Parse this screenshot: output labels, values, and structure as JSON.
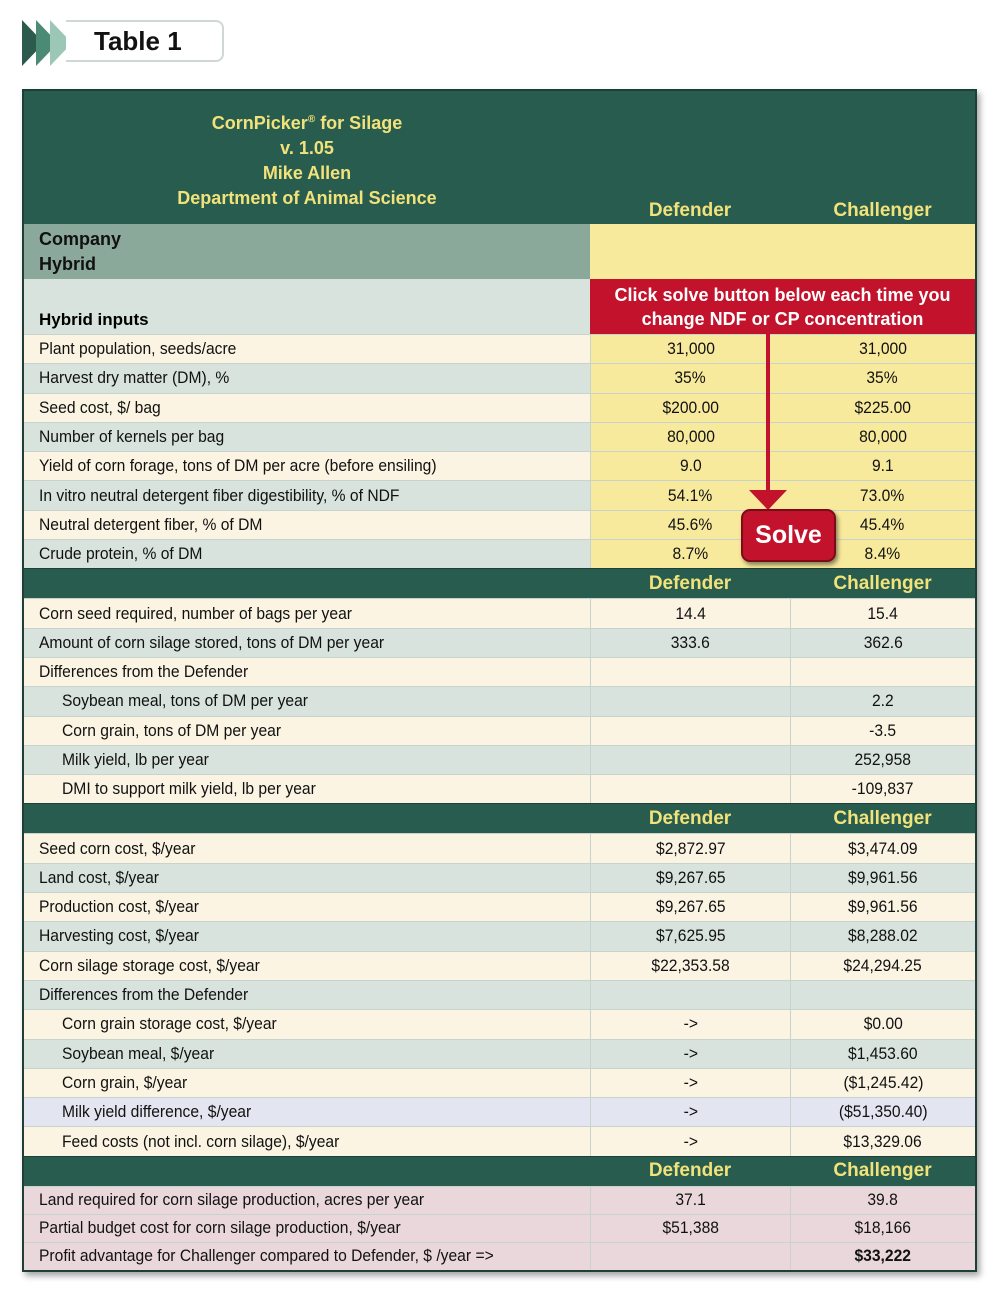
{
  "label": "Table 1",
  "banner": {
    "title": "CornPicker",
    "reg": "®",
    "title_suffix": " for Silage",
    "version": "v. 1.05",
    "author": "Mike Allen",
    "department": "Department of Animal Science"
  },
  "columns": {
    "defender": "Defender",
    "challenger": "Challenger"
  },
  "company_label": "Company",
  "hybrid_label": "Hybrid",
  "hybrid_inputs_label": "Hybrid inputs",
  "notice": {
    "line1": "Click solve button below each time you",
    "line2": "change NDF or CP concentration"
  },
  "solve_label": "Solve",
  "inputs": [
    {
      "label": "Plant population, seeds/acre",
      "defender": "31,000",
      "challenger": "31,000"
    },
    {
      "label": "Harvest dry matter (DM), %",
      "defender": "35%",
      "challenger": "35%"
    },
    {
      "label": "Seed cost,  $/ bag",
      "defender": "$200.00",
      "challenger": "$225.00"
    },
    {
      "label": "Number of kernels per bag",
      "defender": "80,000",
      "challenger": "80,000"
    },
    {
      "label": "Yield of corn forage, tons of DM per acre (before ensiling)",
      "defender": "9.0",
      "challenger": "9.1"
    },
    {
      "label": "In vitro neutral detergent fiber digestibility, % of NDF",
      "defender": "54.1%",
      "challenger": "73.0%"
    },
    {
      "label": "Neutral detergent fiber, % of DM",
      "defender": "45.6%",
      "challenger": "45.4%"
    },
    {
      "label": "Crude protein, % of DM",
      "defender": "8.7%",
      "challenger": "8.4%"
    }
  ],
  "section2": [
    {
      "label": "Corn seed required, number of bags per year",
      "defender": "14.4",
      "challenger": "15.4",
      "indent": false
    },
    {
      "label": "Amount of corn silage stored, tons of DM per year",
      "defender": "333.6",
      "challenger": "362.6",
      "indent": false
    },
    {
      "label": "Differences from the Defender",
      "defender": "",
      "challenger": "",
      "indent": false
    },
    {
      "label": "Soybean meal, tons of DM per year",
      "defender": "",
      "challenger": "2.2",
      "indent": true
    },
    {
      "label": "Corn grain, tons of DM per year",
      "defender": "",
      "challenger": "-3.5",
      "indent": true
    },
    {
      "label": "Milk yield, lb per year",
      "defender": "",
      "challenger": "252,958",
      "indent": true
    },
    {
      "label": "DMI to support milk yield, lb per year",
      "defender": "",
      "challenger": "-109,837",
      "indent": true
    }
  ],
  "section3": [
    {
      "label": "Seed corn cost, $/year",
      "defender": "$2,872.97",
      "challenger": "$3,474.09",
      "indent": false
    },
    {
      "label": "Land cost, $/year",
      "defender": "$9,267.65",
      "challenger": "$9,961.56",
      "indent": false
    },
    {
      "label": "Production cost, $/year",
      "defender": "$9,267.65",
      "challenger": "$9,961.56",
      "indent": false
    },
    {
      "label": "Harvesting cost, $/year",
      "defender": "$7,625.95",
      "challenger": "$8,288.02",
      "indent": false
    },
    {
      "label": "Corn silage storage cost, $/year",
      "defender": "$22,353.58",
      "challenger": "$24,294.25",
      "indent": false
    },
    {
      "label": "Differences from the Defender",
      "defender": "",
      "challenger": "",
      "indent": false
    },
    {
      "label": "Corn grain storage cost, $/year",
      "defender": "->",
      "challenger": "$0.00",
      "indent": true
    },
    {
      "label": "Soybean meal, $/year",
      "defender": "->",
      "challenger": "$1,453.60",
      "indent": true
    },
    {
      "label": "Corn grain, $/year",
      "defender": "->",
      "challenger": "($1,245.42)",
      "indent": true
    },
    {
      "label": "Milk yield difference, $/year",
      "defender": "->",
      "challenger": "($51,350.40)",
      "indent": true
    },
    {
      "label": "Feed costs (not incl. corn silage), $/year",
      "defender": "->",
      "challenger": "$13,329.06",
      "indent": true
    }
  ],
  "section4": [
    {
      "label": "Land required for corn silage production, acres per year",
      "defender": "37.1",
      "challenger": "39.8"
    },
    {
      "label": "Partial budget cost for corn silage production, $/year",
      "defender": "$51,388",
      "challenger": "$18,166"
    },
    {
      "label": "Profit advantage for Challenger compared to Defender, $ /year =>",
      "defender": "",
      "challenger": "$33,222"
    }
  ],
  "colors": {
    "header_green": "#285c4f",
    "header_text": "#f2e27a",
    "input_yellow": "#f8ea9c",
    "notice_red": "#c3122b"
  }
}
